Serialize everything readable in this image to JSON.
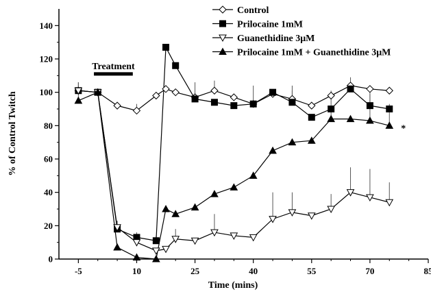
{
  "chart_data": {
    "type": "line",
    "xlabel": "Time (mins)",
    "ylabel": "% of Control Twitch",
    "xlim": [
      -10,
      85
    ],
    "ylim": [
      0,
      150
    ],
    "xticks": [
      -5,
      10,
      25,
      40,
      55,
      70,
      85
    ],
    "yticks": [
      0,
      20,
      40,
      60,
      80,
      100,
      120,
      140
    ],
    "legend_position": "top-right",
    "grid": false,
    "annotations": {
      "treatment_label": "Treatment",
      "treatment_range": [
        -1,
        9
      ],
      "treatment_level": 111,
      "significance_marker": "*",
      "significance_at": [
        78,
        80
      ]
    },
    "series": [
      {
        "name": "Control",
        "marker": "diamond-open",
        "x": [
          -5,
          0,
          5,
          10,
          15,
          17.5,
          20,
          25,
          30,
          35,
          40,
          45,
          50,
          55,
          60,
          65,
          70,
          75
        ],
        "values": [
          101,
          100,
          92,
          89,
          98,
          102,
          100,
          97,
          101,
          97,
          93,
          99,
          96,
          92,
          98,
          104,
          102,
          101
        ],
        "error": [
          5,
          0,
          0,
          4,
          0,
          0,
          2,
          0,
          6,
          0,
          0,
          0,
          5,
          0,
          0,
          5,
          0,
          0
        ]
      },
      {
        "name": "Prilocaine 1mM",
        "marker": "square-filled",
        "x": [
          -5,
          0,
          5,
          10,
          15,
          17.5,
          20,
          25,
          30,
          35,
          40,
          45,
          50,
          55,
          60,
          65,
          70,
          75
        ],
        "values": [
          101,
          100,
          18,
          13,
          11,
          127,
          116,
          96,
          94,
          92,
          93,
          100,
          94,
          85,
          90,
          102,
          92,
          90
        ],
        "error": [
          5,
          0,
          0,
          3,
          3,
          0,
          0,
          10,
          0,
          0,
          11,
          0,
          10,
          0,
          0,
          0,
          10,
          0
        ]
      },
      {
        "name": "Guanethidine 3μM",
        "marker": "triangle-down-open",
        "x": [
          -5,
          0,
          5,
          10,
          15,
          17.5,
          20,
          25,
          30,
          35,
          40,
          45,
          50,
          55,
          60,
          65,
          70,
          75
        ],
        "values": [
          101,
          100,
          19,
          10,
          5,
          6,
          12,
          11,
          16,
          14,
          13,
          24,
          28,
          26,
          30,
          40,
          37,
          34
        ],
        "error": [
          0,
          0,
          4,
          0,
          0,
          0,
          6,
          0,
          11,
          0,
          0,
          16,
          12,
          0,
          9,
          15,
          17,
          12
        ]
      },
      {
        "name": "Prilocaine 1mM + Guanethidine 3μM",
        "marker": "triangle-up-filled",
        "x": [
          -5,
          0,
          5,
          10,
          15,
          17.5,
          20,
          25,
          30,
          35,
          40,
          45,
          50,
          55,
          60,
          65,
          70,
          75
        ],
        "values": [
          95,
          100,
          7,
          1,
          0,
          30,
          27,
          31,
          39,
          43,
          50,
          65,
          70,
          71,
          84,
          84,
          83,
          80
        ],
        "error": [
          5,
          0,
          0,
          0,
          0,
          0,
          0,
          0,
          0,
          0,
          0,
          0,
          0,
          0,
          17,
          0,
          16,
          13
        ]
      }
    ]
  }
}
